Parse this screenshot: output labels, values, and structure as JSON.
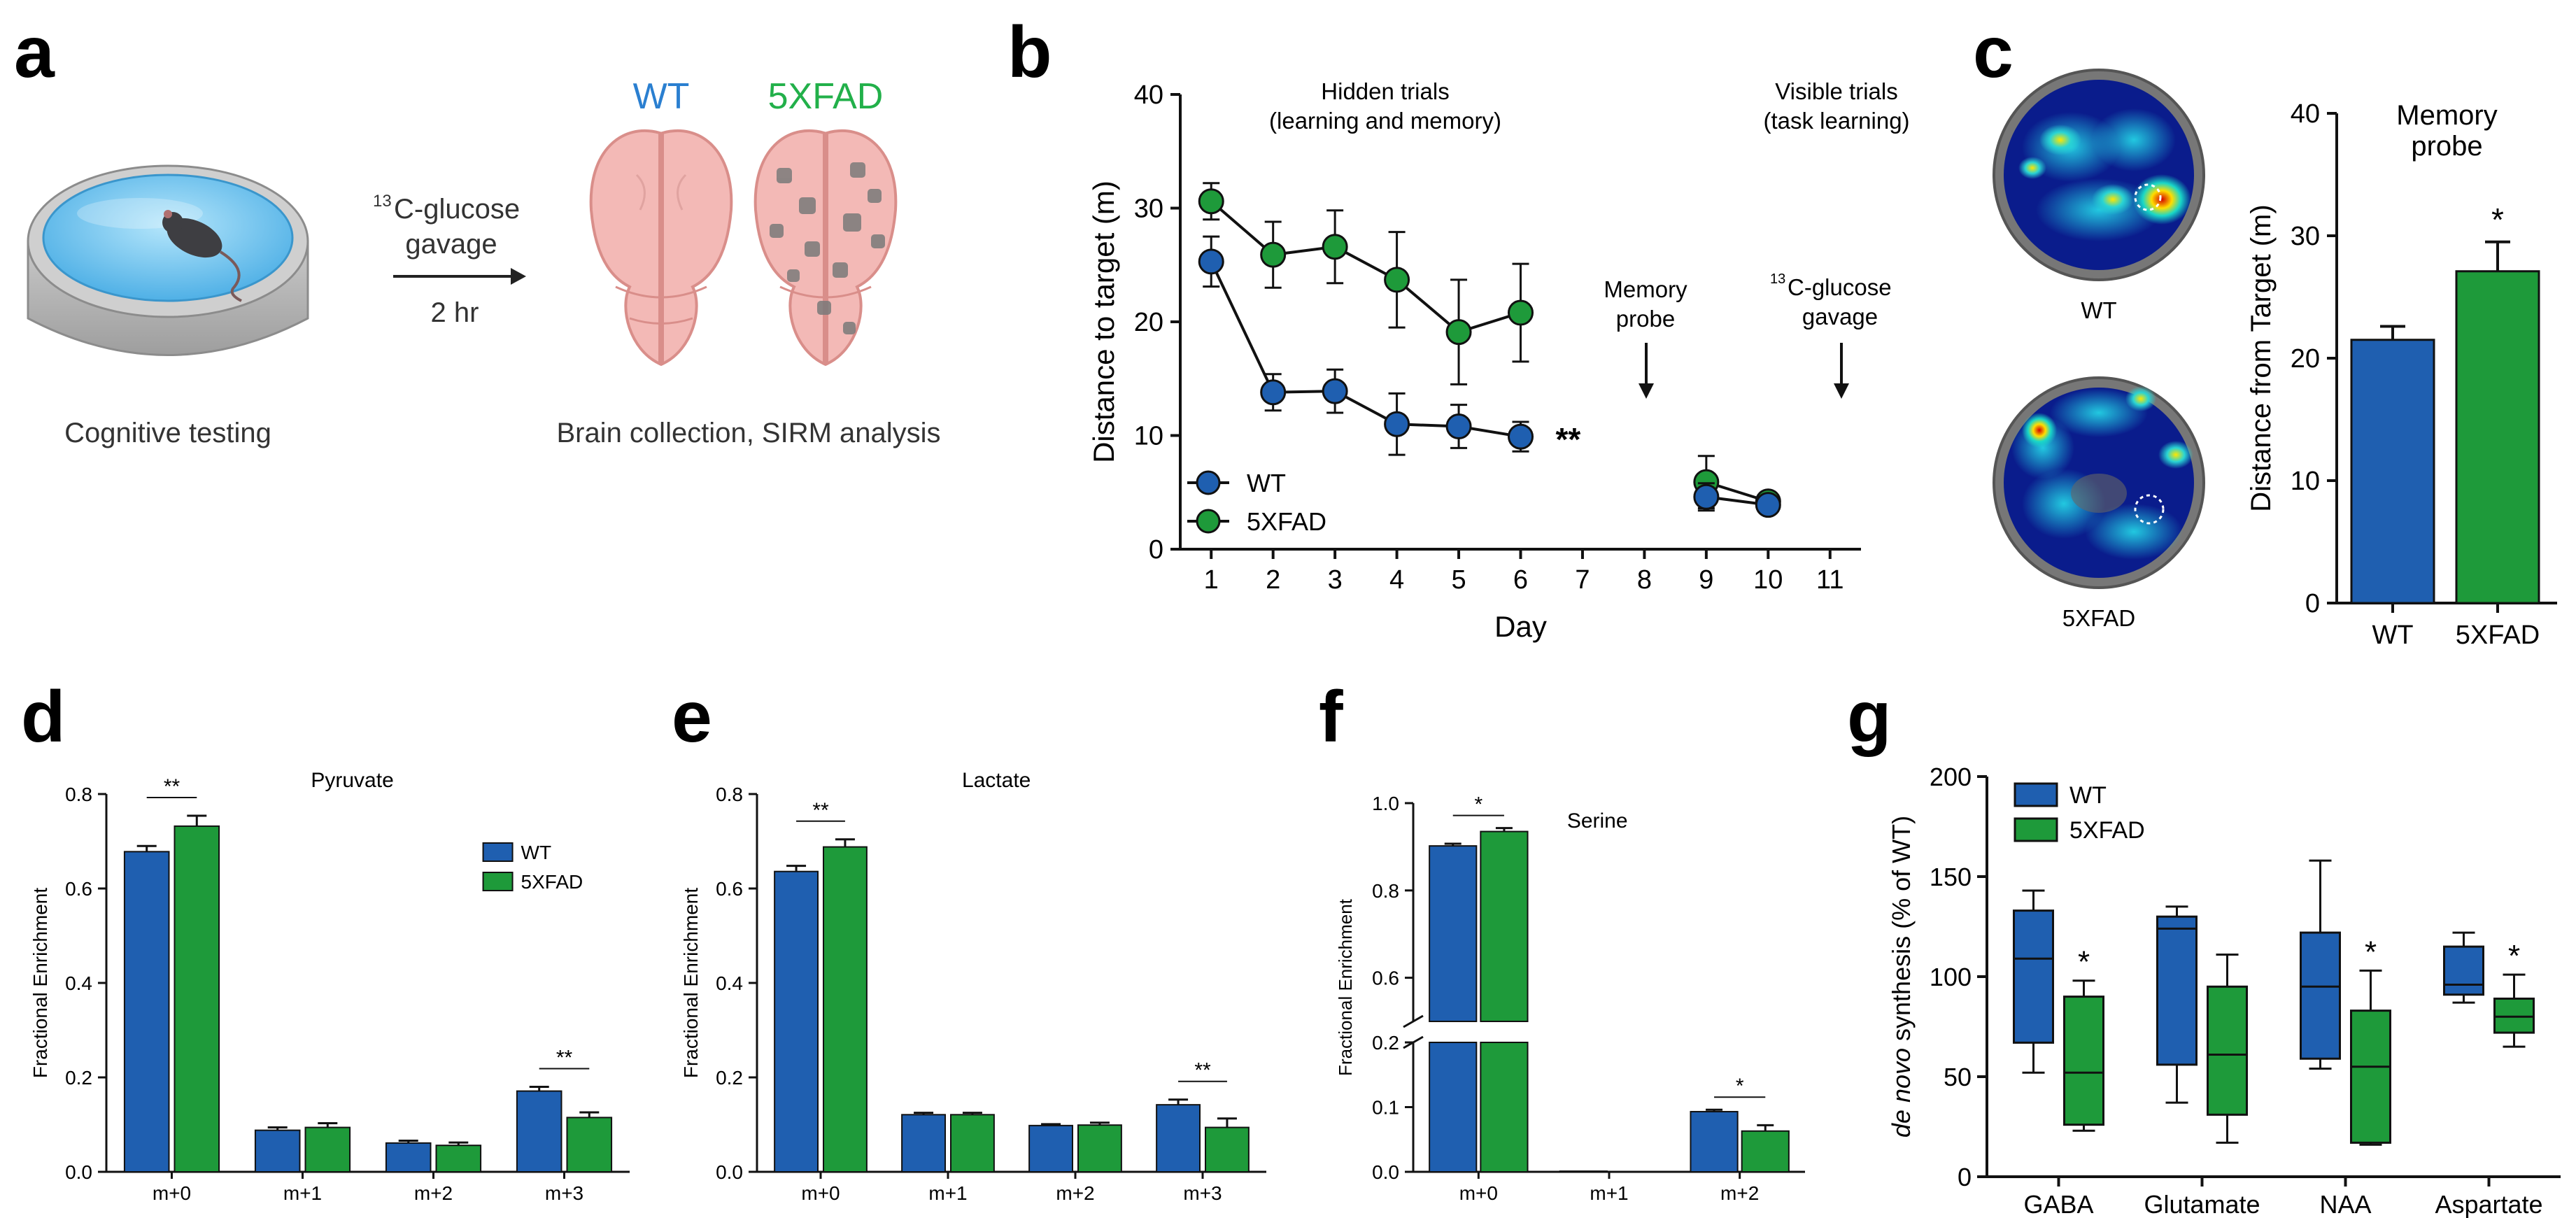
{
  "colors": {
    "wt": "#1f5fb0",
    "xfad": "#1e9a3a",
    "wt_label": "#2a7fd0",
    "xfad_label": "#22b04a",
    "dish_outer": "#b9b9b9",
    "water": "#7fc8ef",
    "brain": "#f3b9b6",
    "brain_edge": "#d98e8a",
    "plaque": "#7a7a7a"
  },
  "panel_a": {
    "letter": "a",
    "arrow_label_sup": "13",
    "arrow_label_1": "C-glucose",
    "arrow_label_2": "gavage",
    "arrow_time": "2 hr",
    "caption_left": "Cognitive testing",
    "caption_right": "Brain collection, SIRM analysis",
    "brain_wt_label": "WT",
    "brain_xfad_label": "5XFAD",
    "icons": [
      "water-maze-dish-icon",
      "mouse-icon",
      "arrow-right-icon",
      "brain-wt-icon",
      "brain-5xfad-icon"
    ]
  },
  "panel_b": {
    "letter": "b",
    "header_hidden_1": "Hidden trials",
    "header_hidden_2": "(learning and memory)",
    "header_visible_1": "Visible trials",
    "header_visible_2": "(task learning)",
    "probe_1": "Memory",
    "probe_2": "probe",
    "gavage_sup": "13",
    "gavage_1": "C-glucose",
    "gavage_2": "gavage",
    "sig": "**"
  },
  "panel_c": {
    "letter": "c",
    "heatmap_wt_label": "WT",
    "heatmap_xfad_label": "5XFAD",
    "sig": "*"
  },
  "panel_d": {
    "letter": "d"
  },
  "panel_e": {
    "letter": "e"
  },
  "panel_f": {
    "letter": "f"
  },
  "panel_g": {
    "letter": "g"
  },
  "chart_data": [
    {
      "id": "b",
      "type": "line",
      "xlabel": "Day",
      "ylabel": "Distance to target (m)",
      "xticks": [
        1,
        2,
        3,
        4,
        5,
        6,
        7,
        8,
        9,
        10,
        11
      ],
      "xlim": [
        0.5,
        11.5
      ],
      "ylim": [
        0,
        40
      ],
      "yticks": [
        0,
        10,
        20,
        30,
        40
      ],
      "legend": [
        "WT",
        "5XFAD"
      ],
      "legend_position": "bottom-left",
      "series": [
        {
          "name": "WT",
          "segments": [
            {
              "x": [
                1,
                2,
                3,
                4,
                5,
                6
              ],
              "y": [
                25.3,
                13.8,
                13.9,
                11.0,
                10.8,
                9.9
              ],
              "err": [
                2.2,
                1.6,
                1.9,
                2.7,
                1.9,
                1.3
              ]
            },
            {
              "x": [
                9,
                10
              ],
              "y": [
                4.6,
                3.9
              ],
              "err": [
                1.2,
                0.5
              ]
            }
          ]
        },
        {
          "name": "5XFAD",
          "segments": [
            {
              "x": [
                1,
                2,
                3,
                4,
                5,
                6
              ],
              "y": [
                30.6,
                25.9,
                26.6,
                23.7,
                19.1,
                20.8
              ],
              "err": [
                1.6,
                2.9,
                3.2,
                4.2,
                4.6,
                4.3
              ]
            },
            {
              "x": [
                9,
                10
              ],
              "y": [
                5.9,
                4.2
              ],
              "err": [
                2.3,
                0.4
              ]
            }
          ]
        }
      ],
      "annotations": [
        {
          "text": "**",
          "x": 6,
          "y": 9.9
        },
        {
          "text": "Memory probe",
          "x": 8
        },
        {
          "text": "13C-glucose gavage",
          "x": 11
        }
      ]
    },
    {
      "id": "c",
      "type": "bar",
      "title": "Memory probe",
      "ylabel": "Distance from Target (m)",
      "categories": [
        "WT",
        "5XFAD"
      ],
      "values": [
        21.5,
        27.1
      ],
      "err": [
        1.1,
        2.4
      ],
      "ylim": [
        0,
        40
      ],
      "yticks": [
        0,
        10,
        20,
        30,
        40
      ],
      "annotations": [
        {
          "text": "*",
          "category": "5XFAD"
        }
      ]
    },
    {
      "id": "d",
      "type": "bar",
      "title": "Pyruvate",
      "ylabel": "Fractional Enrichment",
      "categories": [
        "m+0",
        "m+1",
        "m+2",
        "m+3"
      ],
      "ylim": [
        0,
        0.8
      ],
      "yticks": [
        "0.0",
        "0.2",
        "0.4",
        "0.6",
        "0.8"
      ],
      "series": [
        {
          "name": "WT",
          "values": [
            0.678,
            0.088,
            0.061,
            0.171
          ],
          "err": [
            0.012,
            0.006,
            0.005,
            0.009
          ]
        },
        {
          "name": "5XFAD",
          "values": [
            0.732,
            0.094,
            0.056,
            0.115
          ],
          "err": [
            0.022,
            0.009,
            0.006,
            0.011
          ]
        }
      ],
      "legend": [
        "WT",
        "5XFAD"
      ],
      "legend_position": "top-right",
      "significance": [
        {
          "categories": "m+0",
          "text": "**"
        },
        {
          "categories": "m+3",
          "text": "**"
        }
      ]
    },
    {
      "id": "e",
      "type": "bar",
      "title": "Lactate",
      "ylabel": "Fractional Enrichment",
      "categories": [
        "m+0",
        "m+1",
        "m+2",
        "m+3"
      ],
      "ylim": [
        0,
        0.8
      ],
      "yticks": [
        "0.0",
        "0.2",
        "0.4",
        "0.6",
        "0.8"
      ],
      "series": [
        {
          "name": "WT",
          "values": [
            0.636,
            0.121,
            0.098,
            0.142
          ],
          "err": [
            0.012,
            0.004,
            0.003,
            0.011
          ]
        },
        {
          "name": "5XFAD",
          "values": [
            0.688,
            0.121,
            0.099,
            0.094
          ],
          "err": [
            0.016,
            0.004,
            0.005,
            0.019
          ]
        }
      ],
      "significance": [
        {
          "categories": "m+0",
          "text": "**"
        },
        {
          "categories": "m+3",
          "text": "**"
        }
      ]
    },
    {
      "id": "f",
      "type": "bar",
      "title": "Serine",
      "ylabel": "Fractional Enrichment",
      "categories": [
        "m+0",
        "m+1",
        "m+2"
      ],
      "broken_axis": {
        "lower": [
          0.0,
          0.2
        ],
        "upper": [
          0.5,
          1.0
        ]
      },
      "yticks_upper": [
        "0.6",
        "0.8",
        "1.0"
      ],
      "yticks_lower": [
        "0.0",
        "0.1",
        "0.2"
      ],
      "series": [
        {
          "name": "WT",
          "values": [
            0.902,
            0.001,
            0.093
          ],
          "err": [
            0.005,
            0.0005,
            0.003
          ]
        },
        {
          "name": "5XFAD",
          "values": [
            0.935,
            0.0,
            0.063
          ],
          "err": [
            0.008,
            0.0,
            0.009
          ]
        }
      ],
      "significance": [
        {
          "categories": "m+0",
          "text": "*"
        },
        {
          "categories": "m+2",
          "text": "*"
        }
      ]
    },
    {
      "id": "g",
      "type": "boxplot",
      "ylabel_italic": "de novo",
      "ylabel_rest": " synthesis (% of WT)",
      "categories": [
        "GABA",
        "Glutamate",
        "NAA",
        "Aspartate"
      ],
      "ylim": [
        0,
        200
      ],
      "yticks": [
        0,
        50,
        100,
        150,
        200
      ],
      "legend": [
        "WT",
        "5XFAD"
      ],
      "legend_position": "top-left",
      "series": [
        {
          "name": "WT",
          "boxes": [
            {
              "min": 52,
              "q1": 67,
              "median": 109,
              "q3": 133,
              "max": 143
            },
            {
              "min": 37,
              "q1": 56,
              "median": 124,
              "q3": 130,
              "max": 135
            },
            {
              "min": 54,
              "q1": 59,
              "median": 95,
              "q3": 122,
              "max": 158
            },
            {
              "min": 87,
              "q1": 91,
              "median": 96,
              "q3": 115,
              "max": 122
            }
          ]
        },
        {
          "name": "5XFAD",
          "boxes": [
            {
              "min": 23,
              "q1": 26,
              "median": 52,
              "q3": 90,
              "max": 98
            },
            {
              "min": 17,
              "q1": 31,
              "median": 61,
              "q3": 95,
              "max": 111
            },
            {
              "min": 16,
              "q1": 17,
              "median": 55,
              "q3": 83,
              "max": 103
            },
            {
              "min": 65,
              "q1": 72,
              "median": 80,
              "q3": 89,
              "max": 101
            }
          ]
        }
      ],
      "significance": [
        {
          "category": "GABA",
          "text": "*"
        },
        {
          "category": "NAA",
          "text": "*"
        },
        {
          "category": "Aspartate",
          "text": "*"
        }
      ]
    }
  ]
}
